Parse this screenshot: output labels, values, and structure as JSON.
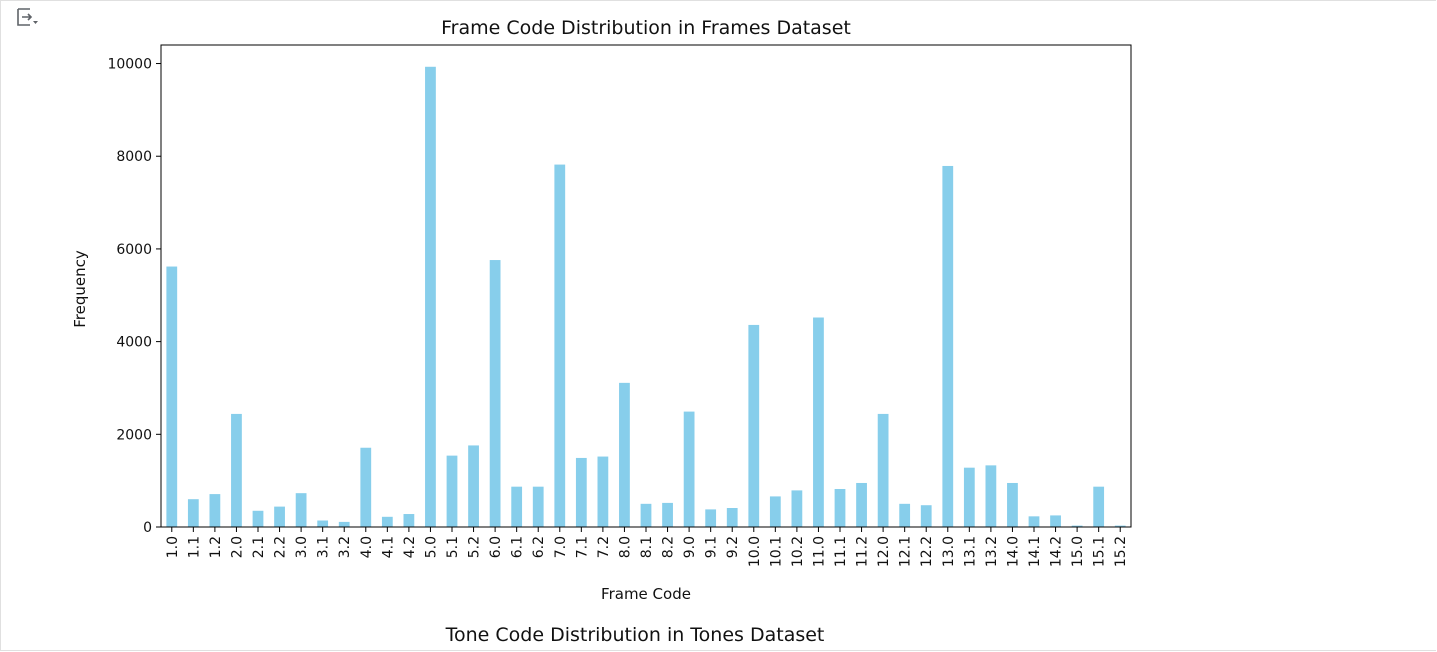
{
  "output_icon": "output-collapse-icon",
  "chart_data": {
    "type": "bar",
    "title": "Frame Code Distribution in Frames Dataset",
    "xlabel": "Frame Code",
    "ylabel": "Frequency",
    "ylim": [
      0,
      10400
    ],
    "yticks": [
      0,
      2000,
      4000,
      6000,
      8000,
      10000
    ],
    "grid": false,
    "legend": "none",
    "bar_color": "#87CEEB",
    "categories": [
      "1.0",
      "1.1",
      "1.2",
      "2.0",
      "2.1",
      "2.2",
      "3.0",
      "3.1",
      "3.2",
      "4.0",
      "4.1",
      "4.2",
      "5.0",
      "5.1",
      "5.2",
      "6.0",
      "6.1",
      "6.2",
      "7.0",
      "7.1",
      "7.2",
      "8.0",
      "8.1",
      "8.2",
      "9.0",
      "9.1",
      "9.2",
      "10.0",
      "10.1",
      "10.2",
      "11.0",
      "11.1",
      "11.2",
      "12.0",
      "12.1",
      "12.2",
      "13.0",
      "13.1",
      "13.2",
      "14.0",
      "14.1",
      "14.2",
      "15.0",
      "15.1",
      "15.2"
    ],
    "values": [
      5620,
      600,
      710,
      2440,
      350,
      440,
      730,
      140,
      110,
      1710,
      220,
      280,
      9930,
      1540,
      1760,
      5760,
      870,
      870,
      7820,
      1490,
      1520,
      3110,
      500,
      520,
      2490,
      380,
      410,
      4360,
      660,
      790,
      4520,
      820,
      950,
      2440,
      500,
      470,
      7790,
      1280,
      1330,
      950,
      230,
      250,
      30,
      870,
      30
    ]
  },
  "next_output": {
    "title": "Tone Code Distribution in Tones Dataset"
  }
}
